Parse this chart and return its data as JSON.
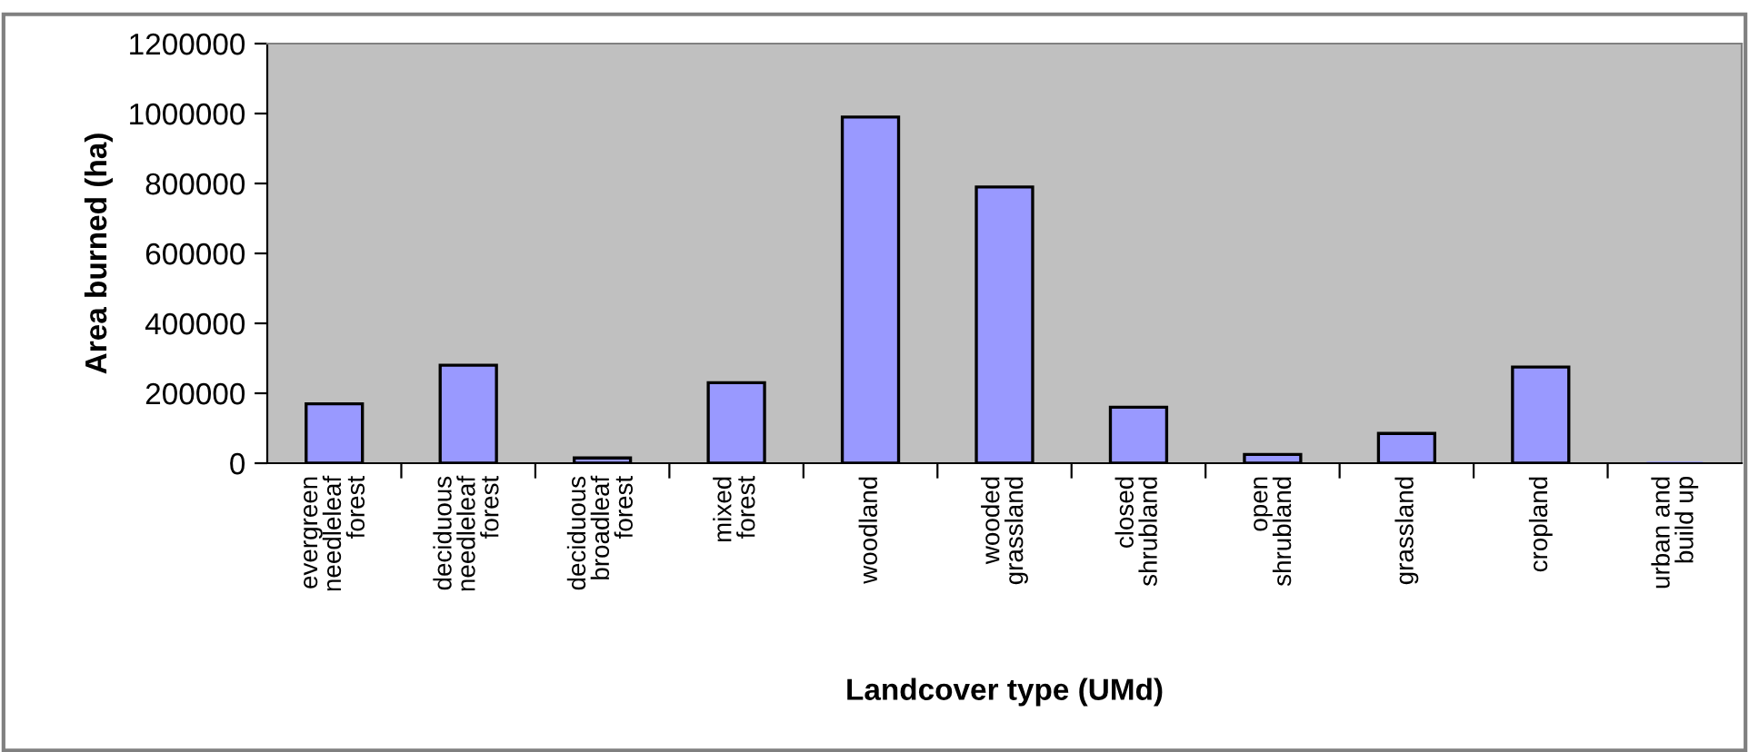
{
  "chart_data": {
    "type": "bar",
    "xlabel": "Landcover type (UMd)",
    "ylabel": "Area burned (ha)",
    "categories": [
      "evergreen\nneedleleaf\nforest",
      "deciduous\nneedleleaf\nforest",
      "deciduous\nbroadleaf\nforest",
      "mixed\nforest",
      "woodland",
      "wooded\ngrassland",
      "closed\nshrubland",
      "open\nshrubland",
      "grassland",
      "cropland",
      "urban and\nbuild up"
    ],
    "values": [
      170000,
      280000,
      15000,
      230000,
      990000,
      790000,
      160000,
      25000,
      85000,
      275000,
      0
    ],
    "color": "#9999ff",
    "ylim": [
      0,
      1200000
    ],
    "yticks": [
      0,
      200000,
      400000,
      600000,
      800000,
      1000000,
      1200000
    ],
    "grid": false,
    "legend": false
  }
}
